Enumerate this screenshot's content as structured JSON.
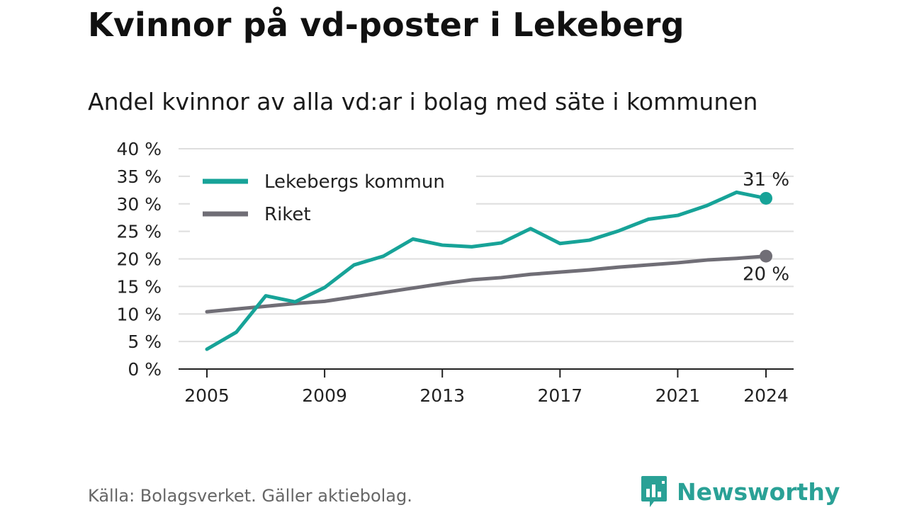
{
  "title": "Kvinnor på vd-poster i Lekeberg",
  "subtitle": "Andel kvinnor av alla vd:ar i bolag med säte i kommunen",
  "source": "Källa: Bolagsverket. Gäller aktiebolag.",
  "brand": "Newsworthy",
  "colors": {
    "primary": "#17a398",
    "secondary": "#706e76",
    "grid": "#dedede",
    "brand": "#2aa196"
  },
  "chart_data": {
    "type": "line",
    "x": [
      2005,
      2006,
      2007,
      2008,
      2009,
      2010,
      2011,
      2012,
      2013,
      2014,
      2015,
      2016,
      2017,
      2018,
      2019,
      2020,
      2021,
      2022,
      2023,
      2024
    ],
    "series": [
      {
        "name": "Lekebergs kommun",
        "color": "#17a398",
        "values": [
          3.6,
          6.7,
          13.3,
          12.2,
          14.8,
          18.9,
          20.5,
          23.6,
          22.5,
          22.2,
          22.9,
          25.5,
          22.8,
          23.4,
          25.1,
          27.2,
          27.9,
          29.7,
          32.1,
          31.0
        ],
        "end_label": "31 %"
      },
      {
        "name": "Riket",
        "color": "#706e76",
        "values": [
          10.4,
          10.9,
          11.4,
          11.9,
          12.3,
          13.1,
          13.9,
          14.7,
          15.5,
          16.2,
          16.6,
          17.2,
          17.6,
          18.0,
          18.5,
          18.9,
          19.3,
          19.8,
          20.1,
          20.5
        ],
        "end_label": "20 %"
      }
    ],
    "yticks": [
      0,
      5,
      10,
      15,
      20,
      25,
      30,
      35,
      40
    ],
    "ytick_labels": [
      "0 %",
      "5 %",
      "10 %",
      "15 %",
      "20 %",
      "25 %",
      "30 %",
      "35 %",
      "40 %"
    ],
    "xticks": [
      2005,
      2009,
      2013,
      2017,
      2021,
      2024
    ],
    "xtick_labels": [
      "2005",
      "2009",
      "2013",
      "2017",
      "2021",
      "2024"
    ],
    "ylim": [
      0,
      40
    ],
    "xlim": [
      2005,
      2024
    ],
    "grid": true,
    "legend": "top-left"
  }
}
